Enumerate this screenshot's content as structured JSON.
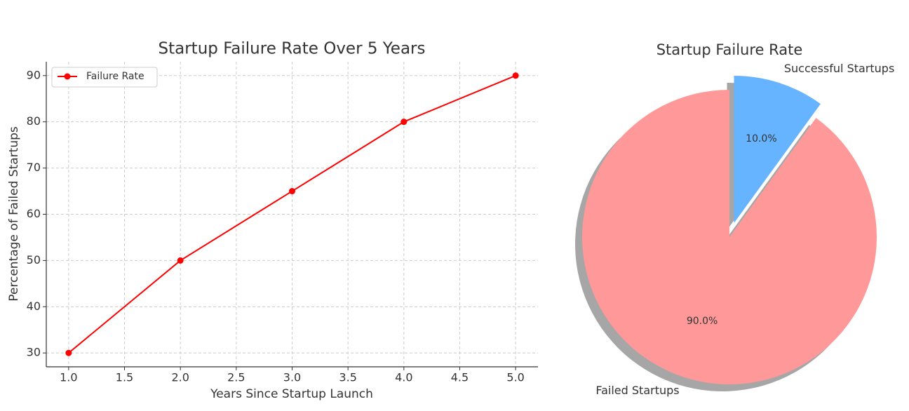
{
  "chart_data": [
    {
      "type": "line",
      "title": "Startup Failure Rate Over 5 Years",
      "x_label": "Years Since Startup Launch",
      "y_label": "Percentage of Failed Startups",
      "x": [
        1,
        2,
        3,
        4,
        5
      ],
      "series": [
        {
          "name": "Failure Rate",
          "color": "#ff0000",
          "values": [
            30,
            50,
            65,
            80,
            90
          ]
        }
      ],
      "xlim": [
        0.8,
        5.2
      ],
      "xticks": [
        {
          "value": 1,
          "label": "1.0"
        },
        {
          "value": 1.5,
          "label": "1.5"
        },
        {
          "value": 2,
          "label": "2.0"
        },
        {
          "value": 2.5,
          "label": "2.5"
        },
        {
          "value": 3,
          "label": "3.0"
        },
        {
          "value": 3.5,
          "label": "3.5"
        },
        {
          "value": 4,
          "label": "4.0"
        },
        {
          "value": 4.5,
          "label": "4.5"
        },
        {
          "value": 5,
          "label": "5.0"
        }
      ],
      "ylim": [
        27,
        93
      ],
      "yticks": [
        30,
        40,
        50,
        60,
        70,
        80,
        90
      ],
      "grid": true,
      "legend": "upper-left"
    },
    {
      "type": "pie",
      "title": "Startup Failure Rate",
      "categories": [
        "Failed Startups",
        "Successful Startups"
      ],
      "values": [
        90,
        10
      ],
      "value_labels": [
        "90.0%",
        "10.0%"
      ],
      "colors": [
        "#ff9999",
        "#66b3ff"
      ],
      "start_angle": 90,
      "explode": [
        0,
        0.1
      ],
      "shadow": true
    }
  ]
}
